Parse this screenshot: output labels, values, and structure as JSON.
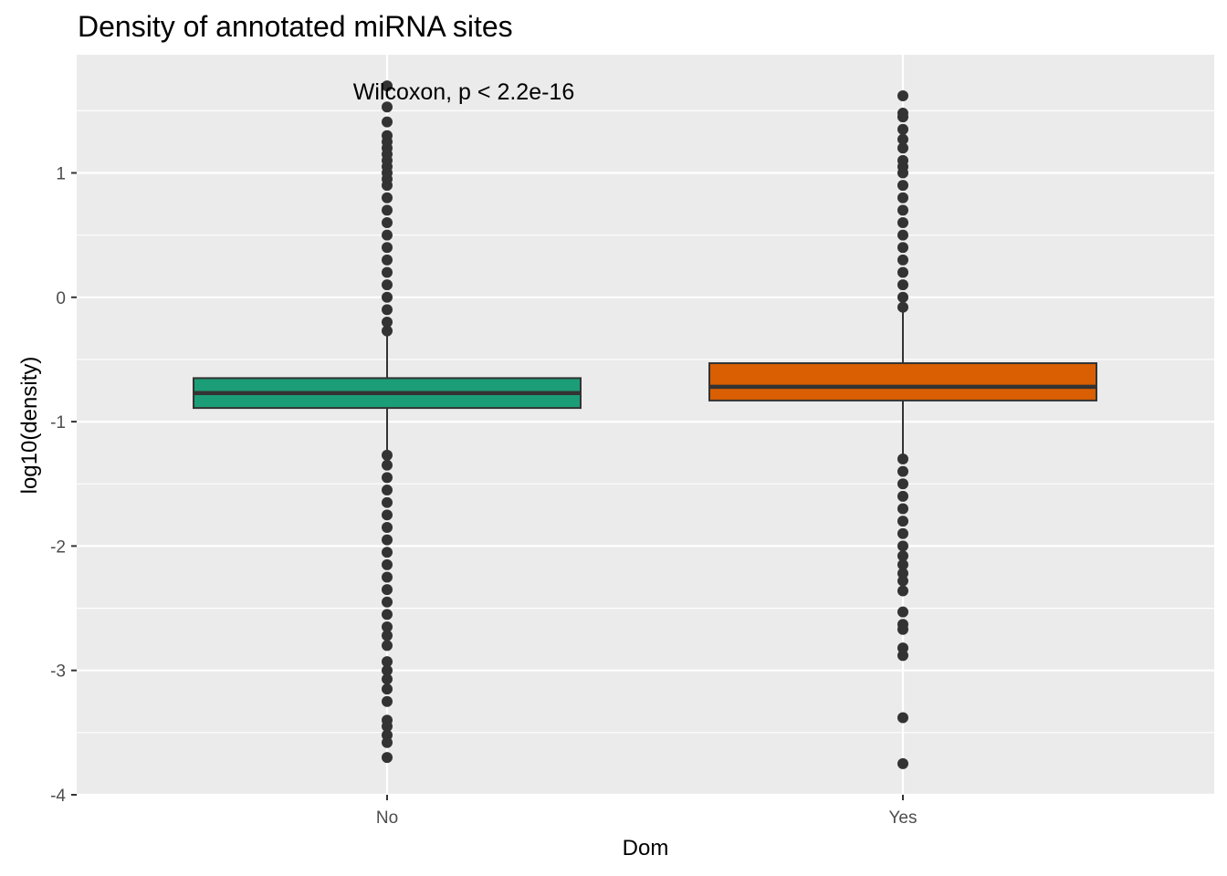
{
  "chart_data": {
    "type": "boxplot",
    "title": "Density of annotated miRNA sites",
    "xlabel": "Dom",
    "ylabel": "log10(density)",
    "ylim": [
      -4,
      1.95
    ],
    "yticks": [
      1,
      0,
      -1,
      -2,
      -3,
      -4
    ],
    "ytick_labels": [
      "1",
      "0",
      "-1",
      "-2",
      "-3",
      "-4"
    ],
    "grid": true,
    "annotation": "Wilcoxon, p < 2.2e-16",
    "categories": [
      "No",
      "Yes"
    ],
    "boxes": [
      {
        "category": "No",
        "color": "#1b9e77",
        "q1": -0.89,
        "median": -0.77,
        "q3": -0.65,
        "whisker_low": -1.25,
        "whisker_high": -0.29,
        "outliers_high": [
          -0.27,
          -0.2,
          -0.1,
          0.0,
          0.1,
          0.2,
          0.3,
          0.4,
          0.5,
          0.6,
          0.7,
          0.8,
          0.9,
          0.95,
          1.0,
          1.05,
          1.1,
          1.15,
          1.2,
          1.25,
          1.3,
          1.41,
          1.53,
          1.7
        ],
        "outliers_low": [
          -1.27,
          -1.35,
          -1.45,
          -1.55,
          -1.65,
          -1.75,
          -1.85,
          -1.95,
          -2.05,
          -2.15,
          -2.25,
          -2.35,
          -2.45,
          -2.55,
          -2.65,
          -2.72,
          -2.8,
          -2.93,
          -3.0,
          -3.07,
          -3.15,
          -3.25,
          -3.4,
          -3.45,
          -3.52,
          -3.58,
          -3.7
        ]
      },
      {
        "category": "Yes",
        "color": "#d95f02",
        "q1": -0.83,
        "median": -0.72,
        "q3": -0.53,
        "whisker_low": -1.27,
        "whisker_high": -0.1,
        "outliers_high": [
          -0.08,
          0.0,
          0.1,
          0.2,
          0.3,
          0.4,
          0.5,
          0.6,
          0.7,
          0.8,
          0.9,
          1.0,
          1.05,
          1.1,
          1.2,
          1.27,
          1.35,
          1.45,
          1.48,
          1.62
        ],
        "outliers_low": [
          -1.3,
          -1.4,
          -1.5,
          -1.6,
          -1.7,
          -1.8,
          -1.9,
          -2.0,
          -2.08,
          -2.15,
          -2.22,
          -2.28,
          -2.36,
          -2.53,
          -2.63,
          -2.67,
          -2.82,
          -2.88,
          -3.38,
          -3.75
        ]
      }
    ]
  }
}
